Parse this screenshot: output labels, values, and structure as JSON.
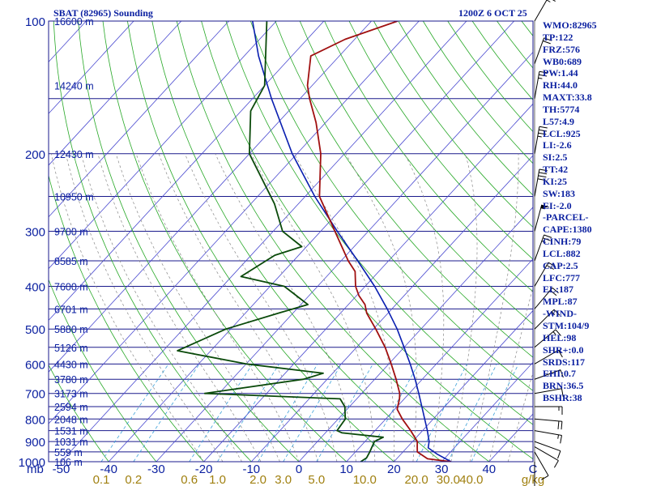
{
  "header": {
    "title": "SBAT (82965) Sounding",
    "datetime": "1200Z  6 OCT 25"
  },
  "indices": [
    "WMO:82965",
    "TP:122",
    "FRZ:576",
    "WB0:689",
    "PW:1.44",
    "RH:44.0",
    "MAXT:33.8",
    "TH:5774",
    "L57:4.9",
    "LCL:925",
    "LI:-2.6",
    "SI:2.5",
    "TT:42",
    "KI:25",
    "SW:183",
    "EI:-2.0",
    "-PARCEL-",
    "CAPE:1380",
    "CINH:79",
    "LCL:882",
    "CAP:2.5",
    "LFC:777",
    "EL:187",
    "MPL:87",
    "-WIND-",
    "STM:104/9",
    "HEL:98",
    "SHR+:0.0",
    "SRDS:117",
    "EHI:0.7",
    "BRN:36.5",
    "BSHR:38"
  ],
  "colors": {
    "isobar": "#1a1a8c",
    "isotherm": "#4a4ad0",
    "dry_adiabat": "#27a827",
    "moist_adiabat": "#888888",
    "mixing_ratio": "#3aa0d8",
    "temperature": "#a01010",
    "dewpoint": "#0a4a0a",
    "parcel": "#0a1fb0",
    "text": "#0a1fa0",
    "mr_label": "#a08010"
  },
  "chart_data": {
    "type": "skew-t",
    "title": "SBAT (82965) Sounding",
    "pressure_axis_label": "mb",
    "pressure_levels_hpa": [
      100,
      200,
      300,
      400,
      500,
      600,
      700,
      800,
      900,
      1000
    ],
    "temperature_ticks_c": [
      -50,
      -40,
      -30,
      -20,
      -10,
      0,
      10,
      20,
      30,
      40
    ],
    "temperature_unit": "C",
    "mixing_ratio_ticks_gkg": [
      0.1,
      0.2,
      0.6,
      1.0,
      2.0,
      3.0,
      5.0,
      10.0,
      20.0,
      30.0,
      40.0
    ],
    "mixing_ratio_ticks_text": [
      "0.1",
      "0.2",
      "0.6",
      "1.0",
      "2.0",
      "3.0",
      "5.0",
      "10.0",
      "20.0",
      "30.0",
      "40.0"
    ],
    "mixing_ratio_unit": "g/kg",
    "height_labels": [
      {
        "p": 100,
        "label": "16600 m"
      },
      {
        "p": 140,
        "label": "14240 m"
      },
      {
        "p": 200,
        "label": "12430 m"
      },
      {
        "p": 250,
        "label": "10950 m"
      },
      {
        "p": 300,
        "label": "9700 m"
      },
      {
        "p": 350,
        "label": "8585 m"
      },
      {
        "p": 400,
        "label": "7600 m"
      },
      {
        "p": 450,
        "label": "6701 m"
      },
      {
        "p": 500,
        "label": "5880 m"
      },
      {
        "p": 550,
        "label": "5126 m"
      },
      {
        "p": 600,
        "label": "4430 m"
      },
      {
        "p": 650,
        "label": "3780 m"
      },
      {
        "p": 700,
        "label": "3173 m"
      },
      {
        "p": 750,
        "label": "2594 m"
      },
      {
        "p": 800,
        "label": "2048 m"
      },
      {
        "p": 850,
        "label": "1531 m"
      },
      {
        "p": 900,
        "label": "1031 m"
      },
      {
        "p": 950,
        "label": "559 m"
      },
      {
        "p": 1000,
        "label": "106 m"
      }
    ],
    "temperature_profile": [
      {
        "p": 1000,
        "t": 32.0
      },
      {
        "p": 985,
        "t": 26.5
      },
      {
        "p": 950,
        "t": 23.0
      },
      {
        "p": 925,
        "t": 22.0
      },
      {
        "p": 900,
        "t": 21.0
      },
      {
        "p": 850,
        "t": 17.5
      },
      {
        "p": 800,
        "t": 13.5
      },
      {
        "p": 760,
        "t": 10.5
      },
      {
        "p": 720,
        "t": 9.0
      },
      {
        "p": 700,
        "t": 8.0
      },
      {
        "p": 650,
        "t": 4.5
      },
      {
        "p": 600,
        "t": 0.5
      },
      {
        "p": 550,
        "t": -4.0
      },
      {
        "p": 500,
        "t": -9.5
      },
      {
        "p": 460,
        "t": -14.5
      },
      {
        "p": 440,
        "t": -16.5
      },
      {
        "p": 420,
        "t": -19.5
      },
      {
        "p": 400,
        "t": -22.0
      },
      {
        "p": 370,
        "t": -25.0
      },
      {
        "p": 350,
        "t": -28.5
      },
      {
        "p": 300,
        "t": -37.0
      },
      {
        "p": 250,
        "t": -47.0
      },
      {
        "p": 200,
        "t": -55.0
      },
      {
        "p": 170,
        "t": -62.0
      },
      {
        "p": 150,
        "t": -68.0
      },
      {
        "p": 140,
        "t": -71.0
      },
      {
        "p": 120,
        "t": -76.0
      },
      {
        "p": 110,
        "t": -72.0
      },
      {
        "p": 100,
        "t": -64.5
      }
    ],
    "dewpoint_profile": [
      {
        "p": 1000,
        "td": 13.0
      },
      {
        "p": 980,
        "td": 13.5
      },
      {
        "p": 950,
        "td": 13.0
      },
      {
        "p": 925,
        "td": 12.5
      },
      {
        "p": 900,
        "td": 12.0
      },
      {
        "p": 880,
        "td": 13.0
      },
      {
        "p": 860,
        "td": 3.5
      },
      {
        "p": 850,
        "td": 2.0
      },
      {
        "p": 800,
        "td": 1.5
      },
      {
        "p": 750,
        "td": -1.0
      },
      {
        "p": 720,
        "td": -3.5
      },
      {
        "p": 700,
        "td": -33.0
      },
      {
        "p": 650,
        "td": -15.0
      },
      {
        "p": 630,
        "td": -12.0
      },
      {
        "p": 600,
        "td": -30.0
      },
      {
        "p": 560,
        "td": -47.0
      },
      {
        "p": 500,
        "td": -41.0
      },
      {
        "p": 460,
        "td": -33.0
      },
      {
        "p": 440,
        "td": -28.5
      },
      {
        "p": 400,
        "td": -37.0
      },
      {
        "p": 380,
        "td": -48.0
      },
      {
        "p": 340,
        "td": -45.0
      },
      {
        "p": 325,
        "td": -41.0
      },
      {
        "p": 300,
        "td": -48.0
      },
      {
        "p": 260,
        "td": -55.0
      },
      {
        "p": 200,
        "td": -70.0
      },
      {
        "p": 160,
        "td": -78.0
      },
      {
        "p": 140,
        "td": -80.0
      },
      {
        "p": 100,
        "td": -92.0
      }
    ],
    "parcel_profile": [
      {
        "p": 1000,
        "t": 32.0
      },
      {
        "p": 960,
        "t": 27.5
      },
      {
        "p": 930,
        "t": 24.5
      },
      {
        "p": 900,
        "t": 23.5
      },
      {
        "p": 850,
        "t": 21.0
      },
      {
        "p": 800,
        "t": 18.2
      },
      {
        "p": 750,
        "t": 15.2
      },
      {
        "p": 700,
        "t": 12.0
      },
      {
        "p": 650,
        "t": 8.5
      },
      {
        "p": 600,
        "t": 4.5
      },
      {
        "p": 550,
        "t": 0.0
      },
      {
        "p": 500,
        "t": -5.0
      },
      {
        "p": 450,
        "t": -11.0
      },
      {
        "p": 400,
        "t": -18.0
      },
      {
        "p": 350,
        "t": -26.5
      },
      {
        "p": 300,
        "t": -36.5
      },
      {
        "p": 250,
        "t": -48.0
      },
      {
        "p": 200,
        "t": -61.0
      },
      {
        "p": 150,
        "t": -76.0
      },
      {
        "p": 120,
        "t": -87.0
      },
      {
        "p": 100,
        "t": -95.0
      }
    ],
    "wind_barbs": [
      {
        "p": 1000,
        "dir": 180,
        "spd": 5
      },
      {
        "p": 950,
        "dir": 150,
        "spd": 10
      },
      {
        "p": 925,
        "dir": 120,
        "spd": 10
      },
      {
        "p": 900,
        "dir": 110,
        "spd": 10
      },
      {
        "p": 850,
        "dir": 100,
        "spd": 15
      },
      {
        "p": 800,
        "dir": 95,
        "spd": 20
      },
      {
        "p": 750,
        "dir": 90,
        "spd": 15
      },
      {
        "p": 700,
        "dir": 80,
        "spd": 10
      },
      {
        "p": 650,
        "dir": 70,
        "spd": 10
      },
      {
        "p": 600,
        "dir": 60,
        "spd": 10
      },
      {
        "p": 550,
        "dir": 50,
        "spd": 15
      },
      {
        "p": 500,
        "dir": 45,
        "spd": 15
      },
      {
        "p": 450,
        "dir": 40,
        "spd": 20
      },
      {
        "p": 400,
        "dir": 30,
        "spd": 20
      },
      {
        "p": 350,
        "dir": 20,
        "spd": 25
      },
      {
        "p": 300,
        "dir": 15,
        "spd": 55
      },
      {
        "p": 250,
        "dir": 10,
        "spd": 40
      },
      {
        "p": 200,
        "dir": 10,
        "spd": 35
      },
      {
        "p": 150,
        "dir": 10,
        "spd": 25
      },
      {
        "p": 125,
        "dir": 20,
        "spd": 20
      },
      {
        "p": 100,
        "dir": 30,
        "spd": 15
      }
    ]
  }
}
